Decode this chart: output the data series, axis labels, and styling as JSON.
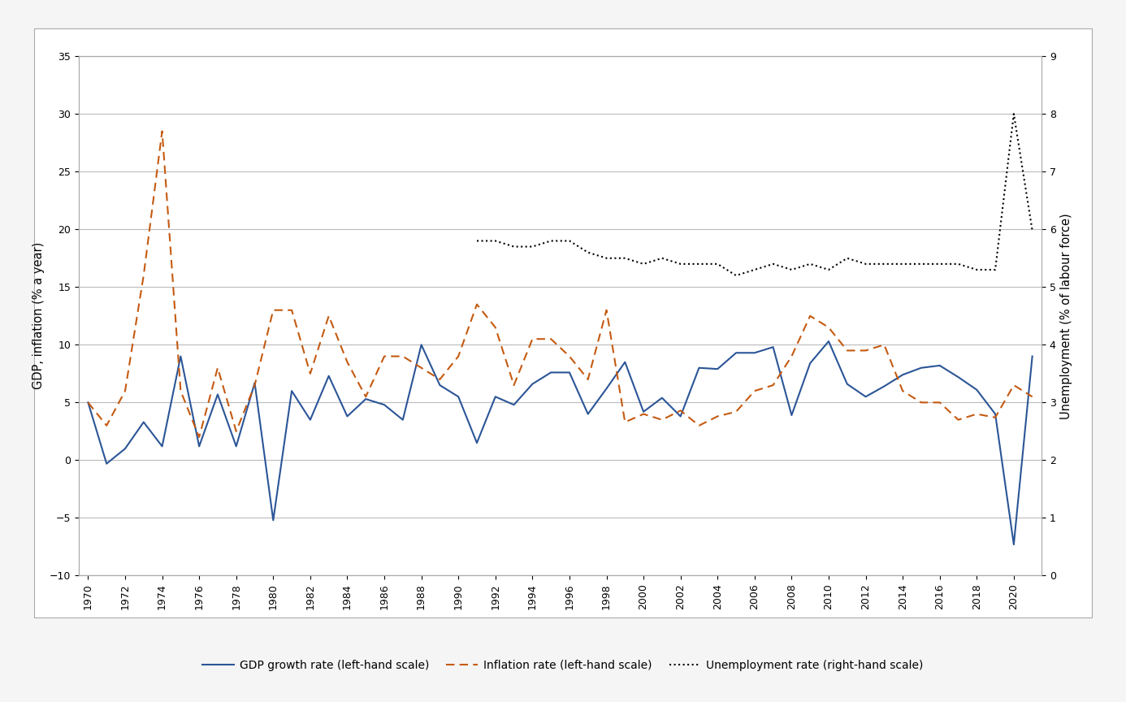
{
  "years": [
    1970,
    1971,
    1972,
    1973,
    1974,
    1975,
    1976,
    1977,
    1978,
    1979,
    1980,
    1981,
    1982,
    1983,
    1984,
    1985,
    1986,
    1987,
    1988,
    1989,
    1990,
    1991,
    1992,
    1993,
    1994,
    1995,
    1996,
    1997,
    1998,
    1999,
    2000,
    2001,
    2002,
    2003,
    2004,
    2005,
    2006,
    2007,
    2008,
    2009,
    2010,
    2011,
    2012,
    2013,
    2014,
    2015,
    2016,
    2017,
    2018,
    2019,
    2020,
    2021
  ],
  "gdp": [
    5.0,
    -0.3,
    1.0,
    3.3,
    1.2,
    9.0,
    1.2,
    5.7,
    1.2,
    6.7,
    -5.2,
    6.0,
    3.5,
    7.3,
    3.8,
    5.3,
    4.8,
    3.5,
    10.0,
    6.5,
    5.5,
    1.5,
    5.5,
    4.8,
    6.6,
    7.6,
    7.6,
    4.0,
    6.2,
    8.5,
    4.2,
    5.4,
    3.8,
    8.0,
    7.9,
    9.3,
    9.3,
    9.8,
    3.9,
    8.4,
    10.3,
    6.6,
    5.5,
    6.4,
    7.4,
    8.0,
    8.2,
    7.2,
    6.1,
    4.0,
    -7.3,
    9.0
  ],
  "inflation": [
    5.0,
    3.0,
    6.0,
    16.0,
    28.5,
    6.0,
    2.0,
    8.0,
    2.5,
    6.5,
    13.0,
    13.0,
    7.5,
    12.5,
    8.5,
    5.5,
    9.0,
    9.0,
    8.0,
    7.0,
    9.0,
    13.5,
    11.5,
    6.5,
    10.5,
    10.5,
    9.0,
    7.0,
    13.0,
    3.3,
    4.0,
    3.5,
    4.3,
    3.0,
    3.8,
    4.2,
    6.0,
    6.5,
    9.0,
    12.5,
    11.5,
    9.5,
    9.5,
    10.0,
    6.0,
    5.0,
    5.0,
    3.5,
    4.0,
    3.7,
    6.5,
    5.5
  ],
  "unemployment": [
    null,
    null,
    null,
    null,
    null,
    null,
    null,
    null,
    null,
    null,
    null,
    null,
    null,
    null,
    null,
    null,
    null,
    null,
    null,
    null,
    null,
    5.8,
    5.8,
    5.7,
    5.7,
    5.8,
    5.8,
    5.6,
    5.5,
    5.5,
    5.4,
    5.5,
    5.4,
    5.4,
    5.4,
    5.2,
    5.3,
    5.4,
    5.3,
    5.4,
    5.3,
    5.5,
    5.4,
    5.4,
    5.4,
    5.4,
    5.4,
    5.4,
    5.3,
    5.3,
    8.0,
    5.98
  ],
  "gdp_color": "#2B5597",
  "inflation_color": "#C55A11",
  "unemployment_color": "#000000",
  "ylabel_left": "GDP, inflation (% a year)",
  "ylabel_right": "Unemployment (% of labour force)",
  "ylim_left": [
    -10,
    35
  ],
  "ylim_right": [
    0,
    9
  ],
  "yticks_left": [
    -10,
    -5,
    0,
    5,
    10,
    15,
    20,
    25,
    30,
    35
  ],
  "yticks_right": [
    0,
    1,
    2,
    3,
    4,
    5,
    6,
    7,
    8,
    9
  ],
  "legend_gdp": "GDP growth rate (left-hand scale)",
  "legend_inflation": "Inflation rate (left-hand scale)",
  "legend_unemployment": "Unemployment rate (right-hand scale)",
  "background_color": "#ffffff",
  "grid_color": "#bbbbbb",
  "fig_background": "#f0f0f0"
}
